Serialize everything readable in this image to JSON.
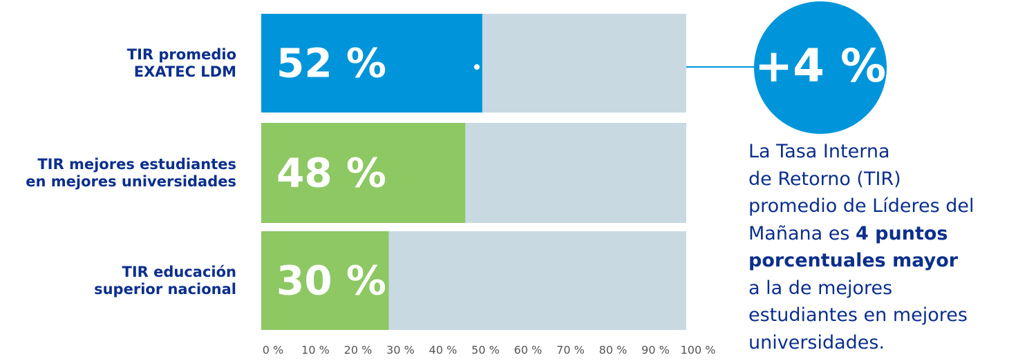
{
  "chart_data": {
    "type": "bar",
    "categories": [
      "TIR promedio\nEXATEC LDM",
      "TIR mejores estudiantes\nen mejores universidades",
      "TIR educación\nsuperior nacional"
    ],
    "values": [
      52,
      48,
      30
    ],
    "value_labels": [
      "52 %",
      "48 %",
      "30 %"
    ],
    "colors": [
      "#0095da",
      "#8dc863",
      "#8dc863"
    ],
    "track_color": "#c8d9e2",
    "xlim": [
      0,
      100
    ],
    "xticks": [
      {
        "value": 0,
        "label": "0 %"
      },
      {
        "value": 10,
        "label": "10 %"
      },
      {
        "value": 20,
        "label": "20 %"
      },
      {
        "value": 30,
        "label": "30 %"
      },
      {
        "value": 40,
        "label": "40 %"
      },
      {
        "value": 50,
        "label": "50 %"
      },
      {
        "value": 60,
        "label": "60 %"
      },
      {
        "value": 70,
        "label": "70 %"
      },
      {
        "value": 80,
        "label": "80 %"
      },
      {
        "value": 90,
        "label": "90 %"
      },
      {
        "value": 100,
        "label": "100 %"
      }
    ],
    "annotation": "+4 %",
    "description_lines": [
      [
        {
          "text": "La Tasa Interna"
        }
      ],
      [
        {
          "text": "de Retorno (TIR)"
        }
      ],
      [
        {
          "text": "promedio de Líderes del"
        }
      ],
      [
        {
          "text": "Mañana es "
        },
        {
          "text": "4 puntos",
          "bold": true
        }
      ],
      [
        {
          "text": "porcentuales mayor",
          "bold": true
        }
      ],
      [
        {
          "text": "a la de mejores"
        }
      ],
      [
        {
          "text": "estudiantes en mejores"
        }
      ],
      [
        {
          "text": "universidades."
        }
      ]
    ]
  }
}
